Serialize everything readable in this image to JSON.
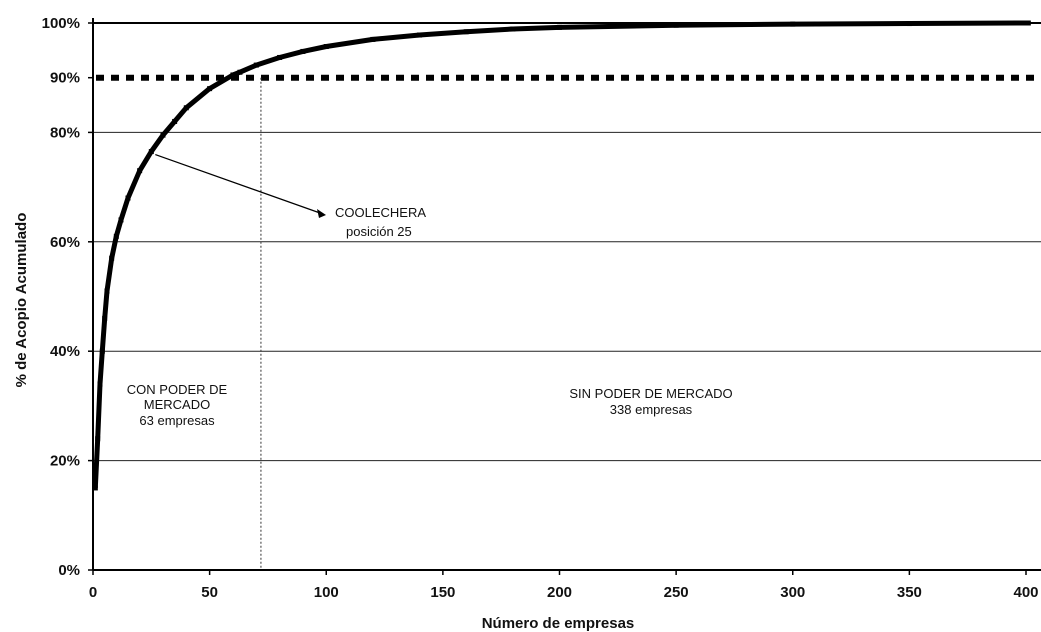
{
  "chart_data": {
    "type": "line",
    "title": "",
    "xlabel": "Número de empresas",
    "ylabel": "% de Acopio Acumulado",
    "xlim": [
      0,
      415
    ],
    "ylim": [
      0,
      100
    ],
    "x_ticks": [
      0,
      50,
      100,
      150,
      200,
      250,
      300,
      350,
      400
    ],
    "y_ticks": [
      {
        "value": 0,
        "label": "0%"
      },
      {
        "value": 20,
        "label": "20%"
      },
      {
        "value": 40,
        "label": "40%"
      },
      {
        "value": 60,
        "label": "60%"
      },
      {
        "value": 80,
        "label": "80%"
      },
      {
        "value": 90,
        "label": "90%"
      },
      {
        "value": 100,
        "label": "100%"
      }
    ],
    "grid": true,
    "series": [
      {
        "name": "",
        "x": [
          1,
          2,
          3,
          4,
          5,
          6,
          8,
          10,
          12,
          15,
          20,
          25,
          30,
          35,
          40,
          50,
          60,
          63,
          70,
          80,
          90,
          100,
          120,
          140,
          160,
          180,
          200,
          250,
          300,
          350,
          401
        ],
        "y": [
          15,
          24,
          34,
          40,
          46,
          51,
          57,
          61,
          64,
          68,
          73,
          76.5,
          79.5,
          82,
          84.5,
          88,
          90.5,
          91,
          92.3,
          93.7,
          94.8,
          95.7,
          97,
          97.8,
          98.4,
          98.9,
          99.2,
          99.6,
          99.8,
          99.9,
          100
        ]
      }
    ],
    "reference_line": {
      "y": 90
    },
    "divider_x": 72,
    "annotations": {
      "point": {
        "name": "COOLECHERA",
        "position_label": "posición 25",
        "x": 25,
        "y": 76.5
      },
      "left_region": {
        "line1": "CON PODER DE",
        "line2": "MERCADO",
        "line3": "63 empresas"
      },
      "right_region": {
        "line1": "SIN PODER DE MERCADO",
        "line2": "338 empresas"
      }
    }
  }
}
